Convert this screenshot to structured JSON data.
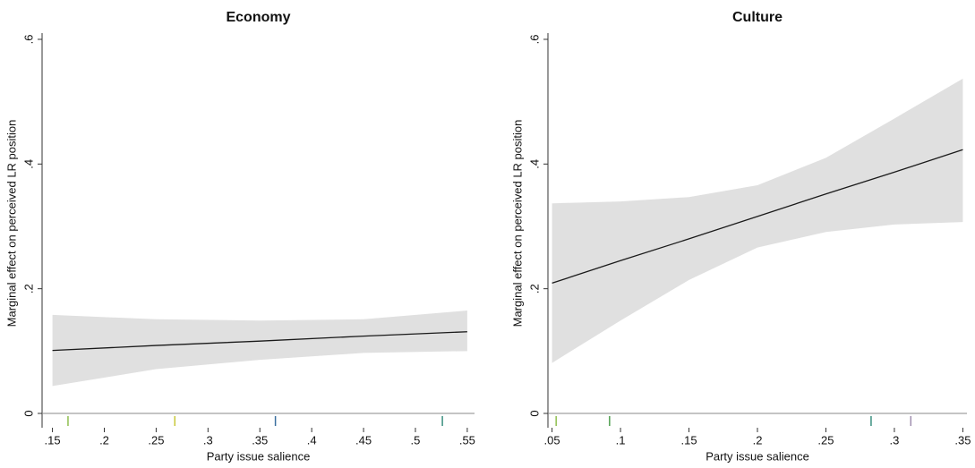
{
  "chart_data": [
    {
      "type": "line",
      "title": "Economy",
      "xlabel": "Party issue salience",
      "ylabel": "Marginal effect on perceived LR position",
      "x": [
        0.15,
        0.25,
        0.35,
        0.45,
        0.55
      ],
      "series": [
        {
          "color": "#1a1a1a",
          "values": [
            0.101,
            0.109,
            0.116,
            0.124,
            0.131
          ]
        }
      ],
      "band": {
        "color": "#e0e0e0",
        "lower": [
          0.044,
          0.071,
          0.086,
          0.097,
          0.1
        ],
        "upper": [
          0.158,
          0.151,
          0.149,
          0.151,
          0.165
        ]
      },
      "rug": {
        "x": [
          0.165,
          0.268,
          0.365,
          0.526
        ],
        "colors": [
          "#8fbf4f",
          "#c8c83a",
          "#3a6f9f",
          "#3a8f7f"
        ]
      },
      "xlim": [
        0.14,
        0.557
      ],
      "ylim": [
        0,
        0.61
      ],
      "xticks": [
        {
          "value": 0.15,
          "label": ".15"
        },
        {
          "value": 0.2,
          "label": ".2"
        },
        {
          "value": 0.25,
          "label": ".25"
        },
        {
          "value": 0.3,
          "label": ".3"
        },
        {
          "value": 0.35,
          "label": ".35"
        },
        {
          "value": 0.4,
          "label": ".4"
        },
        {
          "value": 0.45,
          "label": ".45"
        },
        {
          "value": 0.5,
          "label": ".5"
        },
        {
          "value": 0.55,
          "label": ".55"
        }
      ],
      "yticks": [
        0,
        {
          "value": 0.2,
          "label": ".2"
        },
        {
          "value": 0.4,
          "label": ".4"
        },
        {
          "value": 0.6,
          "label": ".6"
        }
      ]
    },
    {
      "type": "line",
      "title": "Culture",
      "xlabel": "Party issue salience",
      "ylabel": "Marginal effect on perceived LR position",
      "x": [
        0.05,
        0.1,
        0.15,
        0.2,
        0.25,
        0.3,
        0.35
      ],
      "series": [
        {
          "color": "#1a1a1a",
          "values": [
            0.209,
            0.245,
            0.28,
            0.316,
            0.352,
            0.387,
            0.423
          ]
        }
      ],
      "band": {
        "color": "#e0e0e0",
        "lower": [
          0.081,
          0.149,
          0.214,
          0.266,
          0.291,
          0.303,
          0.307
        ],
        "upper": [
          0.337,
          0.34,
          0.347,
          0.366,
          0.41,
          0.473,
          0.537
        ]
      },
      "rug": {
        "x": [
          0.053,
          0.092,
          0.283,
          0.312
        ],
        "colors": [
          "#8fbf4f",
          "#4f9f4f",
          "#3a8f7f",
          "#9f8faf"
        ]
      },
      "xlim": [
        0.047,
        0.353
      ],
      "ylim": [
        0,
        0.61
      ],
      "xticks": [
        {
          "value": 0.05,
          "label": ".05"
        },
        {
          "value": 0.1,
          "label": ".1"
        },
        {
          "value": 0.15,
          "label": ".15"
        },
        {
          "value": 0.2,
          "label": ".2"
        },
        {
          "value": 0.25,
          "label": ".25"
        },
        {
          "value": 0.3,
          "label": ".3"
        },
        {
          "value": 0.35,
          "label": ".35"
        }
      ],
      "yticks": [
        0,
        {
          "value": 0.2,
          "label": ".2"
        },
        {
          "value": 0.4,
          "label": ".4"
        },
        {
          "value": 0.6,
          "label": ".6"
        }
      ]
    }
  ]
}
